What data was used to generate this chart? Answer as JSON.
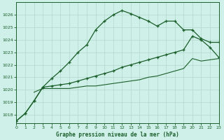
{
  "xlabel": "Graphe pression niveau de la mer (hPa)",
  "bg_color": "#cff0e8",
  "grid_color": "#b0d8cc",
  "line_color": "#1a5e2a",
  "ylim": [
    1017.3,
    1027.0
  ],
  "xlim": [
    0,
    23
  ],
  "yticks": [
    1018,
    1019,
    1020,
    1021,
    1022,
    1023,
    1024,
    1025,
    1026
  ],
  "xticks": [
    0,
    1,
    2,
    3,
    4,
    5,
    6,
    7,
    8,
    9,
    10,
    11,
    12,
    13,
    14,
    15,
    16,
    17,
    18,
    19,
    20,
    21,
    22,
    23
  ],
  "line1_x": [
    0,
    1,
    2,
    3,
    4,
    5,
    6,
    7,
    8,
    9,
    10,
    11,
    12,
    13,
    14,
    15,
    16,
    17,
    18,
    19,
    20,
    21,
    22,
    23
  ],
  "line1_y": [
    1017.5,
    1018.1,
    1019.1,
    1020.2,
    1020.9,
    1021.5,
    1022.2,
    1023.0,
    1023.6,
    1024.8,
    1025.5,
    1026.0,
    1026.35,
    1026.1,
    1025.8,
    1025.5,
    1025.1,
    1025.5,
    1025.5,
    1024.8,
    1024.8,
    1024.1,
    1023.8,
    1023.8
  ],
  "line2_x": [
    0,
    1,
    2,
    3,
    4,
    5,
    6,
    7,
    8,
    9,
    10,
    11,
    12,
    13,
    14,
    15,
    16,
    17,
    18,
    19,
    20,
    21,
    22,
    23
  ],
  "line2_y": [
    1017.5,
    1018.1,
    1019.1,
    1020.2,
    1020.3,
    1020.4,
    1020.5,
    1020.7,
    1020.9,
    1021.1,
    1021.3,
    1021.5,
    1021.8,
    1022.0,
    1022.2,
    1022.4,
    1022.6,
    1022.8,
    1023.0,
    1023.2,
    1024.3,
    1024.0,
    1023.4,
    1022.6
  ],
  "line3_x": [
    2,
    3,
    4,
    5,
    6,
    7,
    8,
    9,
    10,
    11,
    12,
    13,
    14,
    15,
    16,
    17,
    18,
    19,
    20,
    21,
    22,
    23
  ],
  "line3_y": [
    1019.8,
    1020.1,
    1020.1,
    1020.1,
    1020.1,
    1020.2,
    1020.3,
    1020.3,
    1020.4,
    1020.5,
    1020.6,
    1020.7,
    1020.8,
    1021.0,
    1021.1,
    1021.3,
    1021.5,
    1021.7,
    1022.5,
    1022.3,
    1022.4,
    1022.5
  ]
}
